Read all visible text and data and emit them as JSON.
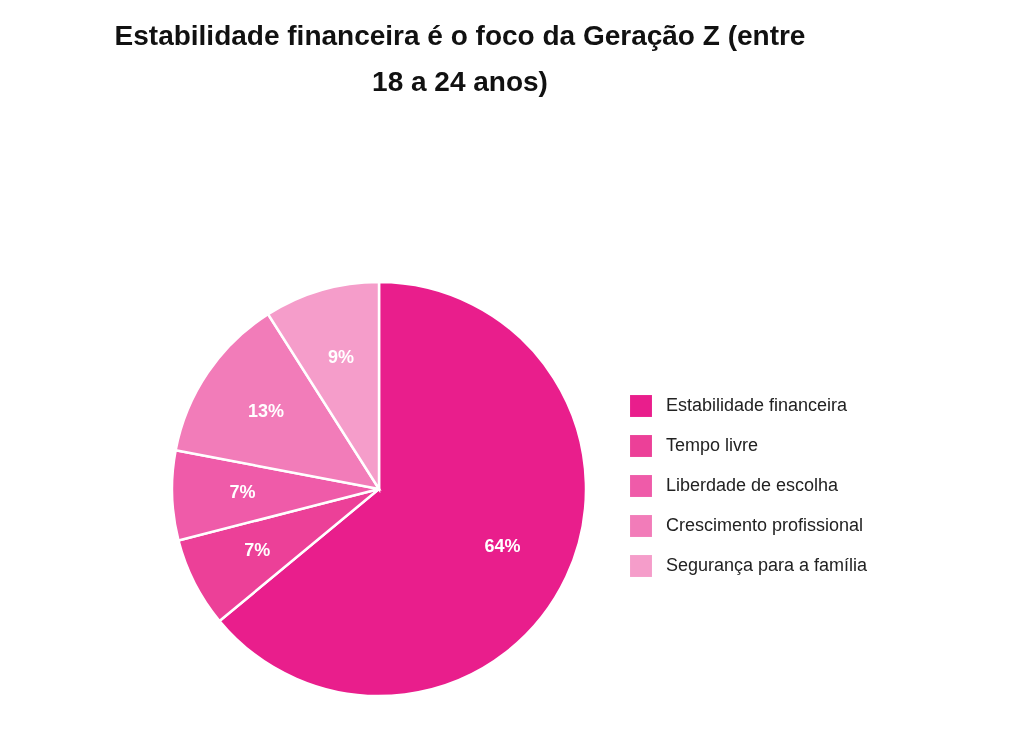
{
  "chart_data": {
    "type": "pie",
    "title": "Estabilidade financeira é o foco da Geração Z (entre 18 a 24 anos)",
    "categories": [
      "Estabilidade financeira",
      "Tempo livre",
      "Liberdade de escolha",
      "Crescimento profissional",
      "Segurança para a família"
    ],
    "values": [
      64,
      7,
      7,
      13,
      9
    ],
    "colors": [
      "#e91e8c",
      "#ec4098",
      "#ef5ba9",
      "#f27cb9",
      "#f59dca"
    ],
    "value_labels": [
      "64%",
      "7%",
      "7%",
      "13%",
      "9%"
    ],
    "legend": "right"
  }
}
